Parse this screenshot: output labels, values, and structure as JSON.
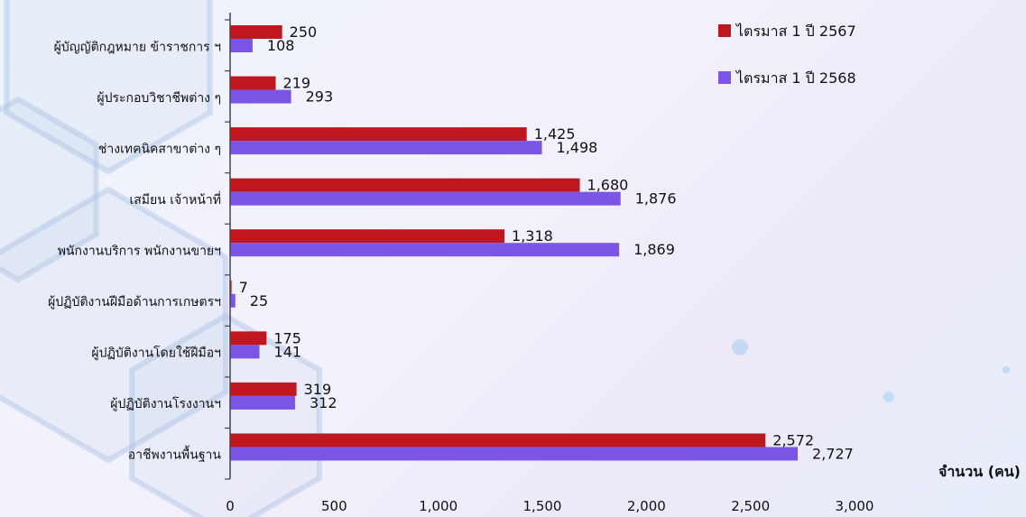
{
  "chart_data": {
    "type": "bar",
    "orientation": "horizontal",
    "categories": [
      "ผู้บัญญัติกฎหมาย ข้าราชการ ฯ",
      "ผู้ประกอบวิชาชีพต่าง ๆ",
      "ช่างเทคนิคสาขาต่าง ๆ",
      "เสมียน เจ้าหน้าที่",
      "พนักงานบริการ พนักงานขายฯ",
      "ผู้ปฏิบัติงานฝีมือด้านการเกษตรฯ",
      "ผู้ปฏิบัติงานโดยใช้ฝีมือฯ",
      "ผู้ปฏิบัติงานโรงงานฯ",
      "อาชีพงานพื้นฐาน"
    ],
    "series": [
      {
        "name": "ไตรมาส 1 ปี 2567",
        "color": "#c0161f",
        "values": [
          250,
          219,
          1425,
          1680,
          1318,
          7,
          175,
          319,
          2572
        ],
        "labels": [
          "250",
          "219",
          "1,425",
          "1,680",
          "1,318",
          "7",
          "175",
          "319",
          "2,572"
        ]
      },
      {
        "name": "ไตรมาส 1 ปี 2568",
        "color": "#7b55e6",
        "values": [
          108,
          293,
          1498,
          1876,
          1869,
          25,
          141,
          312,
          2727
        ],
        "labels": [
          "108",
          "293",
          "1,498",
          "1,876",
          "1,869",
          "25",
          "141",
          "312",
          "2,727"
        ]
      }
    ],
    "xlim": [
      0,
      3000
    ],
    "xticks": [
      0,
      500,
      1000,
      1500,
      2000,
      2500,
      3000
    ],
    "xtick_labels": [
      "0",
      "500",
      "1,000",
      "1,500",
      "2,000",
      "2,500",
      "3,000"
    ],
    "xlabel": "จำนวน (คน)",
    "ylabel": "",
    "title": "",
    "grid": false,
    "legend_position": "top-right"
  }
}
